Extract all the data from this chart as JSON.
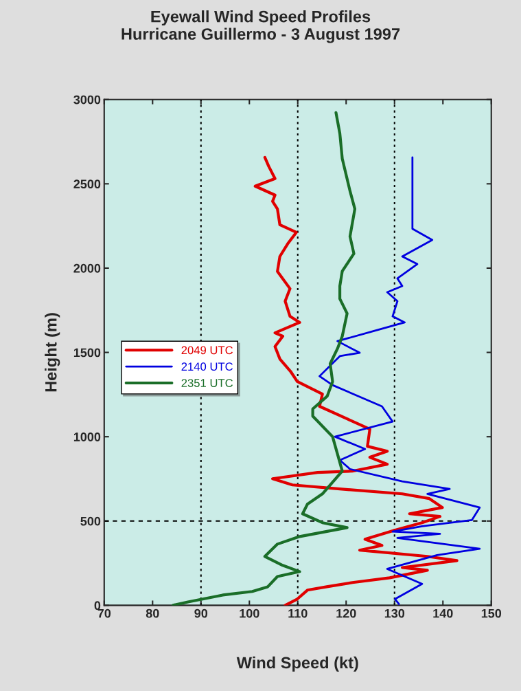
{
  "chart_data": {
    "type": "line",
    "title": "Eyewall Wind Speed Profiles\nHurricane Guillermo - 3 August 1997",
    "xlabel": "Wind Speed (kt)",
    "ylabel": "Height (m)",
    "xlim": [
      70,
      150
    ],
    "xticks": [
      70,
      80,
      90,
      100,
      110,
      120,
      130,
      140,
      150
    ],
    "ylim": [
      0,
      3000
    ],
    "yticks": [
      0,
      500,
      1000,
      1500,
      2000,
      2500,
      3000
    ],
    "grid": false,
    "legend": "left",
    "marker": "none",
    "line_style": "solid",
    "ref_lines": [
      {
        "axis": "x",
        "value": 90,
        "line_style": "dotted"
      },
      {
        "axis": "x",
        "value": 110,
        "line_style": "dotted"
      },
      {
        "axis": "x",
        "value": 130,
        "line_style": "dotted"
      },
      {
        "axis": "y",
        "value": 500,
        "line_style": "dashed"
      }
    ],
    "series": [
      {
        "name": "2049 UTC",
        "color": "#e00000",
        "x": [
          107.4,
          109.9,
          112,
          116,
          121.3,
          129,
          136.8,
          131.6,
          142.9,
          136.8,
          122.8,
          127.4,
          123.9,
          130,
          135.7,
          139.4,
          133.1,
          139.9,
          137.2,
          131.6,
          118.7,
          108.9,
          104.8,
          114.1,
          121.3,
          128.5,
          124.9,
          128.5,
          124.4,
          124.9,
          120.2,
          114.5,
          115.1,
          109.9,
          108.5,
          106.3,
          105.3,
          106.9,
          105.3,
          110.4,
          108.4,
          107.4,
          108.4,
          105.8,
          106.3,
          107.9,
          109.7,
          106.3,
          105.8,
          104.8,
          105.3,
          101.2,
          105.3,
          104,
          103.2
        ],
        "values": [
          0,
          37,
          90,
          110,
          135,
          163,
          208,
          224,
          265,
          290,
          327,
          355,
          392,
          445,
          490,
          527,
          543,
          580,
          633,
          661,
          690,
          714,
          751,
          788,
          796,
          837,
          878,
          914,
          943,
          1045,
          1106,
          1180,
          1253,
          1327,
          1388,
          1461,
          1535,
          1596,
          1616,
          1678,
          1714,
          1804,
          1878,
          1980,
          2069,
          2143,
          2212,
          2257,
          2351,
          2396,
          2433,
          2486,
          2531,
          2604,
          2657
        ]
      },
      {
        "name": "2140 UTC",
        "color": "#0000e0",
        "x": [
          130.9,
          130.1,
          135.7,
          128.5,
          138.8,
          147.6,
          130.6,
          139.4,
          129.6,
          135.7,
          146,
          147.6,
          136.8,
          141.4,
          131.6,
          120.8,
          118.7,
          123.9,
          117.7,
          129.6,
          127.4,
          117.2,
          114.5,
          118.7,
          122.8,
          118.2,
          126.5,
          132.1,
          129.6,
          130.6,
          128.5,
          131.6,
          130.6,
          134.7,
          131.6,
          137.8,
          133.7,
          133.7,
          133.7
        ],
        "values": [
          8,
          37,
          127,
          216,
          298,
          335,
          400,
          424,
          437,
          469,
          506,
          580,
          661,
          690,
          735,
          808,
          861,
          927,
          1000,
          1090,
          1180,
          1306,
          1359,
          1478,
          1498,
          1567,
          1633,
          1678,
          1714,
          1804,
          1857,
          1894,
          1939,
          2024,
          2069,
          2167,
          2233,
          2294,
          2657
        ]
      },
      {
        "name": "2351 UTC",
        "color": "#1a6e28",
        "x": [
          84.2,
          87.3,
          94.5,
          100.6,
          103.8,
          105.8,
          110.4,
          106.9,
          103.2,
          105.8,
          110.4,
          120.2,
          115.1,
          111,
          112,
          115.1,
          119.2,
          118.2,
          117.2,
          113.1,
          113.1,
          116.1,
          117.2,
          116.7,
          118.2,
          119.2,
          120.2,
          118.7,
          118.7,
          119.2,
          121.6,
          120.8,
          121.8,
          120.8,
          119.2,
          118.7,
          117.9
        ],
        "values": [
          0,
          20,
          61,
          82,
          110,
          171,
          200,
          237,
          290,
          363,
          408,
          461,
          490,
          543,
          600,
          661,
          796,
          898,
          1000,
          1122,
          1165,
          1241,
          1327,
          1433,
          1522,
          1596,
          1731,
          1818,
          1894,
          1982,
          2086,
          2188,
          2351,
          2457,
          2649,
          2798,
          2922
        ]
      }
    ]
  }
}
